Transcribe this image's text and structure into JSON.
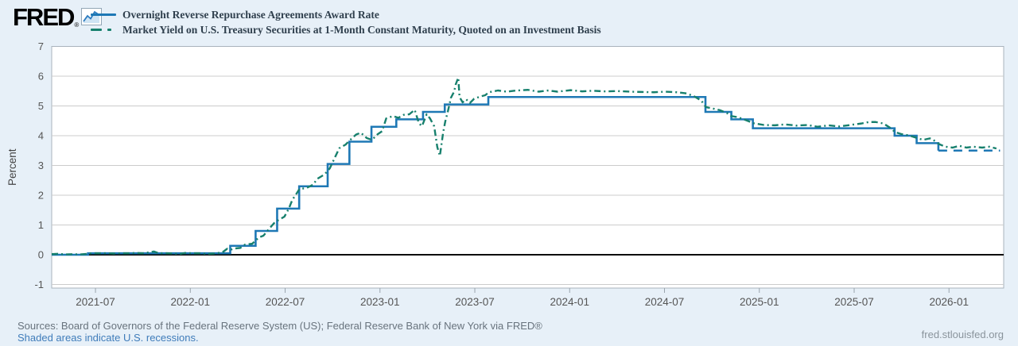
{
  "header": {
    "logo_text": "FRED",
    "logo_reg": "®",
    "legend": [
      {
        "label": "Overnight Reverse Repurchase Agreements Award Rate",
        "color": "#1e78b5",
        "style": "solid"
      },
      {
        "label": "Market Yield on U.S. Treasury Securities at 1-Month Constant Maturity, Quoted on an Investment Basis",
        "color": "#17806d",
        "style": "dash-dot"
      }
    ]
  },
  "footer": {
    "sources": "Sources: Board of Governors of the Federal Reserve System (US); Federal Reserve Bank of New York via FRED®",
    "note": "Shaded areas indicate U.S. recessions.",
    "site": "fred.stlouisfed.org"
  },
  "chart_data": {
    "type": "line",
    "ylabel": "Percent",
    "ylim": [
      -1,
      7
    ],
    "grid": true,
    "x_domain": [
      "2021-04-08",
      "2026-04-15"
    ],
    "data_end": "2026-04-08",
    "y_ticks": [
      7,
      6,
      5,
      4,
      3,
      2,
      1,
      0,
      -1
    ],
    "x_ticks": [
      {
        "label": "2021-07",
        "date": "2021-07-01"
      },
      {
        "label": "2022-01",
        "date": "2022-01-01"
      },
      {
        "label": "2022-07",
        "date": "2022-07-01"
      },
      {
        "label": "2023-01",
        "date": "2023-01-01"
      },
      {
        "label": "2023-07",
        "date": "2023-07-01"
      },
      {
        "label": "2024-01",
        "date": "2024-01-01"
      },
      {
        "label": "2024-07",
        "date": "2024-07-01"
      },
      {
        "label": "2025-01",
        "date": "2025-01-01"
      },
      {
        "label": "2025-07",
        "date": "2025-07-01"
      },
      {
        "label": "2026-01",
        "date": "2026-01-01"
      }
    ],
    "series": [
      {
        "name": "Overnight Reverse Repurchase Agreements Award Rate",
        "color": "#1e78b5",
        "style": "step",
        "dashed_tail_from": "2025-12-11",
        "steps": [
          [
            "2021-04-08",
            0.0
          ],
          [
            "2021-06-17",
            0.05
          ],
          [
            "2022-03-17",
            0.3
          ],
          [
            "2022-05-05",
            0.8
          ],
          [
            "2022-06-16",
            1.55
          ],
          [
            "2022-07-28",
            2.3
          ],
          [
            "2022-09-22",
            3.05
          ],
          [
            "2022-11-03",
            3.8
          ],
          [
            "2022-12-15",
            4.3
          ],
          [
            "2023-02-02",
            4.55
          ],
          [
            "2023-03-23",
            4.8
          ],
          [
            "2023-05-04",
            5.05
          ],
          [
            "2023-07-27",
            5.3
          ],
          [
            "2024-09-19",
            4.8
          ],
          [
            "2024-11-08",
            4.55
          ],
          [
            "2024-12-19",
            4.25
          ],
          [
            "2025-09-18",
            4.0
          ],
          [
            "2025-10-30",
            3.75
          ],
          [
            "2025-12-11",
            3.5
          ]
        ]
      },
      {
        "name": "Market Yield on U.S. Treasury Securities at 1-Month Constant Maturity, Quoted on an Investment Basis",
        "color": "#17806d",
        "style": "dash-dot",
        "points": [
          [
            "2021-04-08",
            0.02
          ],
          [
            "2021-04-20",
            0.03
          ],
          [
            "2021-05-04",
            0.01
          ],
          [
            "2021-05-18",
            0.02
          ],
          [
            "2021-06-01",
            0.01
          ],
          [
            "2021-06-15",
            0.03
          ],
          [
            "2021-06-25",
            0.05
          ],
          [
            "2021-07-09",
            0.05
          ],
          [
            "2021-07-23",
            0.05
          ],
          [
            "2021-08-06",
            0.04
          ],
          [
            "2021-08-20",
            0.05
          ],
          [
            "2021-09-03",
            0.05
          ],
          [
            "2021-09-17",
            0.06
          ],
          [
            "2021-10-01",
            0.05
          ],
          [
            "2021-10-13",
            0.08
          ],
          [
            "2021-10-22",
            0.11
          ],
          [
            "2021-11-01",
            0.05
          ],
          [
            "2021-11-16",
            0.05
          ],
          [
            "2021-12-01",
            0.04
          ],
          [
            "2021-12-10",
            0.02
          ],
          [
            "2021-12-21",
            0.06
          ],
          [
            "2022-01-05",
            0.05
          ],
          [
            "2022-01-19",
            0.05
          ],
          [
            "2022-02-02",
            0.03
          ],
          [
            "2022-02-16",
            0.04
          ],
          [
            "2022-03-02",
            0.08
          ],
          [
            "2022-03-11",
            0.2
          ],
          [
            "2022-03-18",
            0.17
          ],
          [
            "2022-03-25",
            0.21
          ],
          [
            "2022-04-06",
            0.23
          ],
          [
            "2022-04-15",
            0.34
          ],
          [
            "2022-04-29",
            0.37
          ],
          [
            "2022-05-11",
            0.58
          ],
          [
            "2022-05-20",
            0.64
          ],
          [
            "2022-06-01",
            0.88
          ],
          [
            "2022-06-10",
            1.06
          ],
          [
            "2022-06-17",
            1.15
          ],
          [
            "2022-06-30",
            1.28
          ],
          [
            "2022-07-08",
            1.55
          ],
          [
            "2022-07-15",
            1.85
          ],
          [
            "2022-07-22",
            2.03
          ],
          [
            "2022-07-29",
            2.22
          ],
          [
            "2022-08-10",
            2.23
          ],
          [
            "2022-08-24",
            2.35
          ],
          [
            "2022-09-02",
            2.55
          ],
          [
            "2022-09-16",
            2.7
          ],
          [
            "2022-09-26",
            2.9
          ],
          [
            "2022-10-05",
            3.25
          ],
          [
            "2022-10-14",
            3.58
          ],
          [
            "2022-10-26",
            3.7
          ],
          [
            "2022-11-04",
            3.85
          ],
          [
            "2022-11-16",
            4.04
          ],
          [
            "2022-11-25",
            4.1
          ],
          [
            "2022-12-06",
            3.92
          ],
          [
            "2022-12-16",
            3.86
          ],
          [
            "2022-12-27",
            4.05
          ],
          [
            "2023-01-05",
            4.15
          ],
          [
            "2023-01-13",
            4.58
          ],
          [
            "2023-01-26",
            4.66
          ],
          [
            "2023-02-06",
            4.6
          ],
          [
            "2023-02-16",
            4.7
          ],
          [
            "2023-02-27",
            4.72
          ],
          [
            "2023-03-07",
            4.87
          ],
          [
            "2023-03-15",
            4.42
          ],
          [
            "2023-03-21",
            4.32
          ],
          [
            "2023-03-30",
            4.72
          ],
          [
            "2023-04-06",
            4.58
          ],
          [
            "2023-04-14",
            4.32
          ],
          [
            "2023-04-20",
            3.62
          ],
          [
            "2023-04-25",
            3.32
          ],
          [
            "2023-05-01",
            4.12
          ],
          [
            "2023-05-05",
            4.48
          ],
          [
            "2023-05-10",
            4.82
          ],
          [
            "2023-05-16",
            5.28
          ],
          [
            "2023-05-22",
            5.48
          ],
          [
            "2023-05-25",
            5.72
          ],
          [
            "2023-05-30",
            5.95
          ],
          [
            "2023-06-02",
            5.3
          ],
          [
            "2023-06-08",
            5.12
          ],
          [
            "2023-06-15",
            5.22
          ],
          [
            "2023-06-22",
            5.1
          ],
          [
            "2023-06-30",
            5.24
          ],
          [
            "2023-07-12",
            5.32
          ],
          [
            "2023-07-21",
            5.36
          ],
          [
            "2023-07-28",
            5.46
          ],
          [
            "2023-08-15",
            5.52
          ],
          [
            "2023-09-01",
            5.48
          ],
          [
            "2023-09-21",
            5.52
          ],
          [
            "2023-10-12",
            5.54
          ],
          [
            "2023-11-02",
            5.48
          ],
          [
            "2023-11-21",
            5.52
          ],
          [
            "2023-12-08",
            5.48
          ],
          [
            "2024-01-03",
            5.53
          ],
          [
            "2024-01-25",
            5.49
          ],
          [
            "2024-02-15",
            5.51
          ],
          [
            "2024-03-08",
            5.49
          ],
          [
            "2024-04-02",
            5.5
          ],
          [
            "2024-04-25",
            5.48
          ],
          [
            "2024-05-17",
            5.47
          ],
          [
            "2024-06-11",
            5.46
          ],
          [
            "2024-07-02",
            5.48
          ],
          [
            "2024-07-25",
            5.46
          ],
          [
            "2024-08-13",
            5.42
          ],
          [
            "2024-08-28",
            5.32
          ],
          [
            "2024-09-11",
            5.18
          ],
          [
            "2024-09-20",
            4.96
          ],
          [
            "2024-10-01",
            4.92
          ],
          [
            "2024-10-16",
            4.86
          ],
          [
            "2024-10-30",
            4.76
          ],
          [
            "2024-11-08",
            4.66
          ],
          [
            "2024-11-21",
            4.62
          ],
          [
            "2024-12-06",
            4.52
          ],
          [
            "2024-12-20",
            4.42
          ],
          [
            "2025-01-10",
            4.36
          ],
          [
            "2025-01-31",
            4.35
          ],
          [
            "2025-02-20",
            4.38
          ],
          [
            "2025-03-12",
            4.34
          ],
          [
            "2025-04-02",
            4.36
          ],
          [
            "2025-04-22",
            4.3
          ],
          [
            "2025-05-13",
            4.35
          ],
          [
            "2025-06-03",
            4.31
          ],
          [
            "2025-06-24",
            4.36
          ],
          [
            "2025-07-15",
            4.41
          ],
          [
            "2025-07-30",
            4.46
          ],
          [
            "2025-08-12",
            4.46
          ],
          [
            "2025-08-27",
            4.41
          ],
          [
            "2025-09-10",
            4.26
          ],
          [
            "2025-09-19",
            4.12
          ],
          [
            "2025-09-30",
            4.06
          ],
          [
            "2025-10-15",
            4.01
          ],
          [
            "2025-10-31",
            3.92
          ],
          [
            "2025-11-12",
            3.86
          ],
          [
            "2025-11-25",
            3.91
          ],
          [
            "2025-12-05",
            3.82
          ],
          [
            "2025-12-12",
            3.72
          ],
          [
            "2025-12-24",
            3.63
          ],
          [
            "2026-01-08",
            3.6
          ],
          [
            "2026-01-21",
            3.66
          ],
          [
            "2026-02-04",
            3.6
          ],
          [
            "2026-02-18",
            3.63
          ],
          [
            "2026-03-04",
            3.6
          ],
          [
            "2026-03-18",
            3.63
          ],
          [
            "2026-04-01",
            3.57
          ]
        ]
      }
    ]
  }
}
